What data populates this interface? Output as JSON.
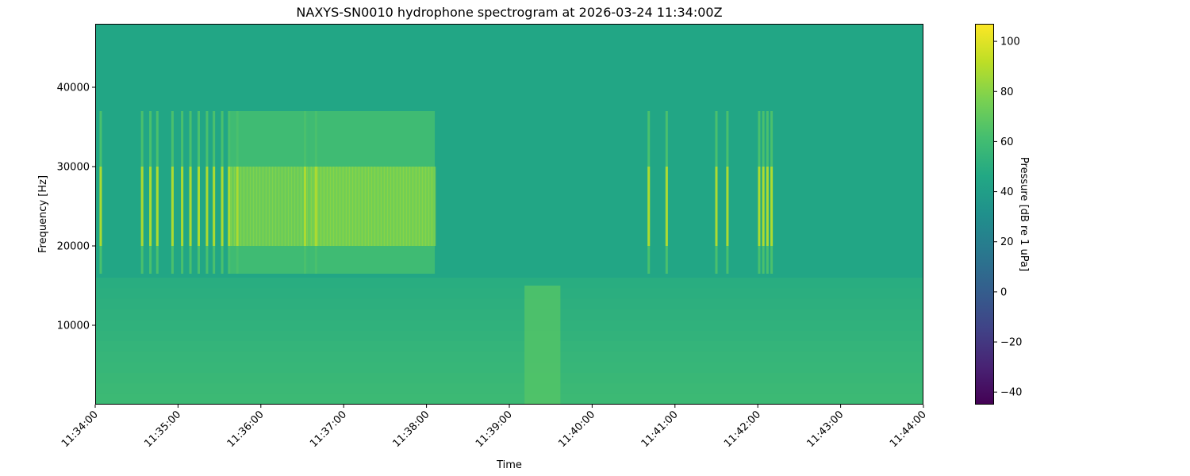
{
  "chart_data": {
    "type": "heatmap",
    "title": "NAXYS-SN0010 hydrophone spectrogram at 2026-03-24 11:34:00Z",
    "xlabel": "Time",
    "ylabel": "Frequency [Hz]",
    "colorbar_label": "Pressure [dB re 1 uPa]",
    "colormap": "viridis",
    "x_range": [
      "11:34:00",
      "11:44:00"
    ],
    "x_ticks": [
      "11:34:00",
      "11:35:00",
      "11:36:00",
      "11:37:00",
      "11:38:00",
      "11:39:00",
      "11:40:00",
      "11:41:00",
      "11:42:00",
      "11:43:00",
      "11:44:00"
    ],
    "y_range": [
      0,
      48000
    ],
    "y_ticks": [
      10000,
      20000,
      30000,
      40000
    ],
    "color_range": [
      -45,
      107
    ],
    "colorbar_ticks": [
      -40,
      -20,
      0,
      20,
      40,
      60,
      80,
      100
    ],
    "background_level_db": 45,
    "low_frequency_band": {
      "freq_hz": [
        0,
        16000
      ],
      "level_db": 58
    },
    "click_band": {
      "freq_hz": [
        16500,
        37000
      ],
      "peak_freq_hz": [
        20000,
        30000
      ],
      "peak_level_db": 88
    },
    "click_train_times": [
      "11:34:04",
      "11:34:34",
      "11:34:40",
      "11:34:45",
      "11:34:56",
      "11:35:03",
      "11:35:09",
      "11:35:15",
      "11:35:21",
      "11:35:26",
      "11:35:32",
      "11:35:37",
      "11:35:43",
      "11:36:32",
      "11:36:40",
      "11:40:41",
      "11:40:54",
      "11:41:30",
      "11:41:38",
      "11:42:01",
      "11:42:04",
      "11:42:07",
      "11:42:10"
    ],
    "dense_click_periods": [
      {
        "start": "11:35:37",
        "end": "11:36:35",
        "peak_level_db": 80
      },
      {
        "start": "11:36:35",
        "end": "11:38:06",
        "peak_level_db": 82
      }
    ],
    "broadband_event": {
      "start": "11:39:11",
      "end": "11:39:37",
      "freq_hz": [
        0,
        15000
      ],
      "level_db": 66
    }
  }
}
